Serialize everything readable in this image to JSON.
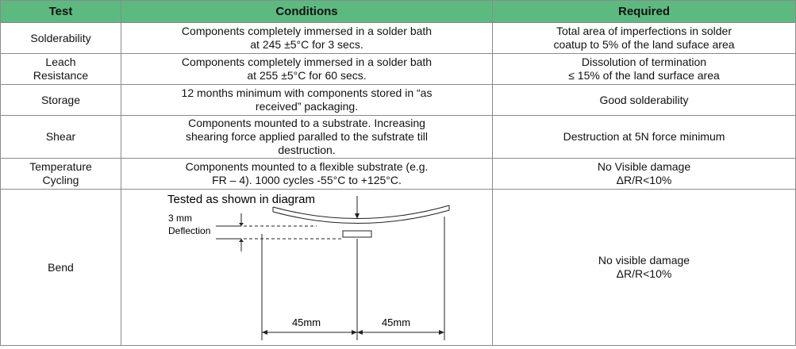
{
  "table": {
    "header": [
      "Test",
      "Conditions",
      "Required"
    ],
    "rows": [
      {
        "test": [
          "Solderability"
        ],
        "conditions": [
          "Components completely immersed in a solder bath",
          "at 245 ±5°C for 3 secs."
        ],
        "required": [
          "Total area of imperfections in solder",
          "coatup to 5% of the land suface area"
        ]
      },
      {
        "test": [
          "Leach",
          "Resistance"
        ],
        "conditions": [
          "Components completely immersed in a solder bath",
          "at 255 ±5°C for 60 secs."
        ],
        "required": [
          "Dissolution of termination",
          "≤ 15% of the land surface area"
        ]
      },
      {
        "test": [
          "Storage"
        ],
        "conditions": [
          "12 months minimum with components stored in “as",
          "received” packaging."
        ],
        "required": [
          "Good solderability"
        ]
      },
      {
        "test": [
          "Shear"
        ],
        "conditions": [
          "Components mounted to a substrate. Increasing",
          "shearing force applied paralled to the sufstrate till",
          "destruction."
        ],
        "required": [
          "Destruction at 5N force minimum"
        ]
      },
      {
        "test": [
          "Temperature",
          "Cycling"
        ],
        "conditions": [
          "Components mounted to a flexible substrate (e.g.",
          "FR – 4). 1000 cycles -55°C to +125°C."
        ],
        "required": [
          "No Visible damage",
          "ΔR/R<10%"
        ]
      }
    ],
    "bend": {
      "test": "Bend",
      "diagram": {
        "caption": "Tested as shown in diagram",
        "depth": "3 mm",
        "deflection": "Deflection",
        "left_span": "45mm",
        "right_span": "45mm"
      },
      "required": [
        "No visible damage",
        "ΔR/R<10%"
      ]
    }
  }
}
